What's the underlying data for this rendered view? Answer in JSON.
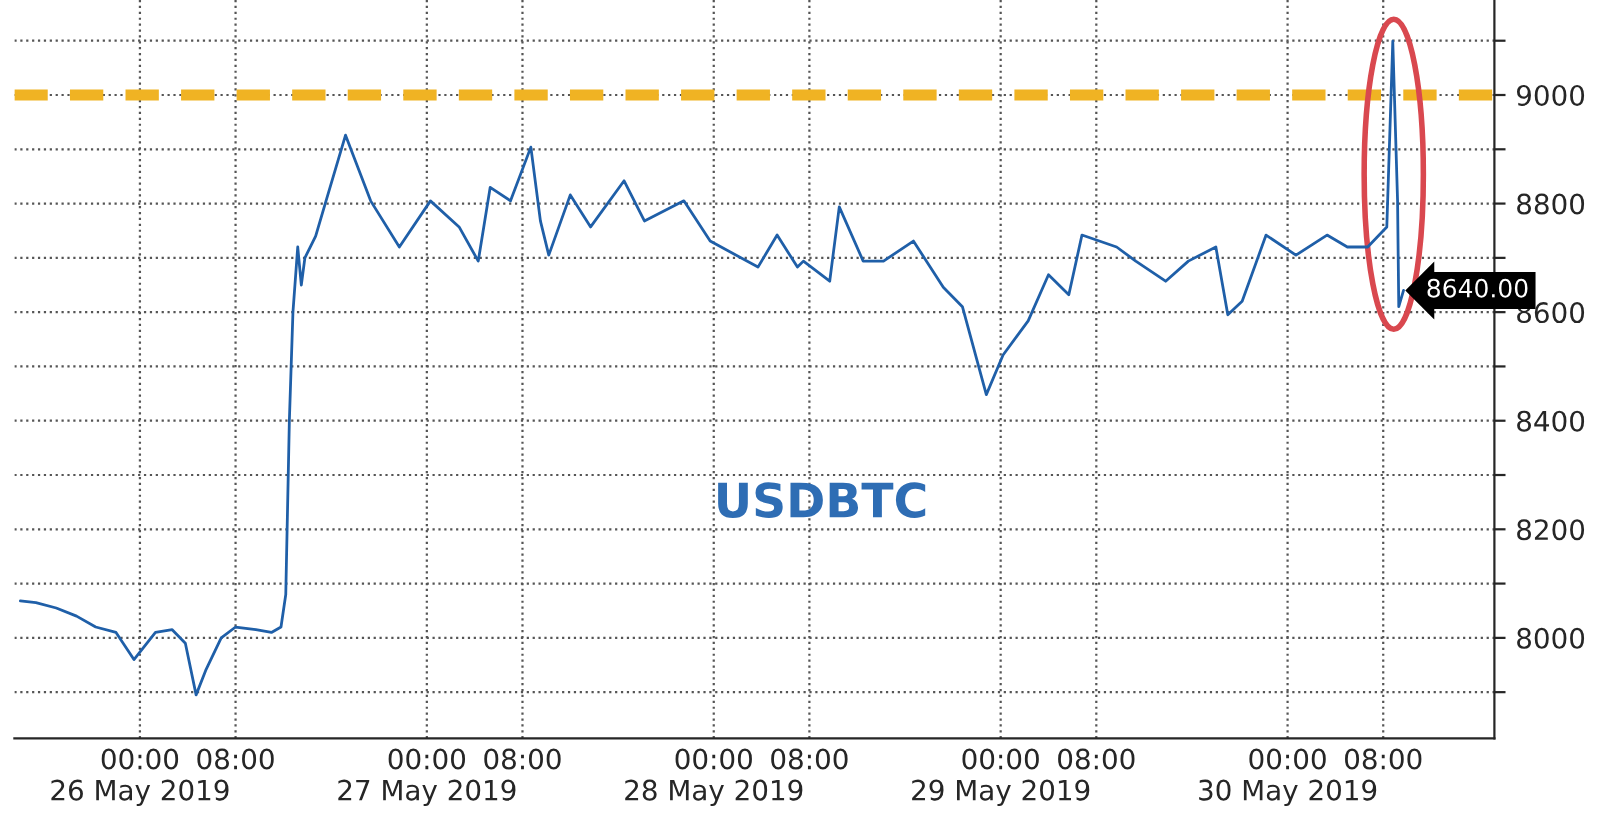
{
  "chart_data": {
    "type": "line",
    "annotations": [
      "USDBTC"
    ],
    "xlim": [
      "2019-05-25T13:30",
      "2019-05-30T17:18"
    ],
    "xticks": [
      {
        "value": "2019-05-26T00:00",
        "label": "00:00\n26 May 2019"
      },
      {
        "value": "2019-05-26T08:00",
        "label": "08:00"
      },
      {
        "value": "2019-05-27T00:00",
        "label": "00:00\n27 May 2019"
      },
      {
        "value": "2019-05-27T08:00",
        "label": "08:00"
      },
      {
        "value": "2019-05-28T00:00",
        "label": "00:00\n28 May 2019"
      },
      {
        "value": "2019-05-28T08:00",
        "label": "08:00"
      },
      {
        "value": "2019-05-29T00:00",
        "label": "00:00\n29 May 2019"
      },
      {
        "value": "2019-05-29T08:00",
        "label": "08:00"
      },
      {
        "value": "2019-05-30T00:00",
        "label": "00:00\n30 May 2019"
      },
      {
        "value": "2019-05-30T08:00",
        "label": "08:00"
      }
    ],
    "ylim": [
      7815,
      9175
    ],
    "yticks": [
      {
        "value": 7900,
        "label": null
      },
      8000,
      {
        "value": 8100,
        "label": null
      },
      8200,
      {
        "value": 8300,
        "label": null
      },
      8400,
      {
        "value": 8500,
        "label": null
      },
      8600,
      {
        "value": 8700,
        "label": null
      },
      8800,
      {
        "value": 8900,
        "label": null
      },
      9000,
      {
        "value": 9100,
        "label": null
      }
    ],
    "grid": true,
    "ref_lines": [
      {
        "axis": "y",
        "value": 9000,
        "color": "#f0b323",
        "line_style": "dashed"
      }
    ],
    "series": [
      {
        "color": "#1f5fa8",
        "x": [
          "2019-05-25T14:00",
          "2019-05-25T15:18",
          "2019-05-25T17:00",
          "2019-05-25T18:42",
          "2019-05-25T20:18",
          "2019-05-25T22:00",
          "2019-05-25T23:30",
          "2019-05-26T01:18",
          "2019-05-26T02:42",
          "2019-05-26T03:48",
          "2019-05-26T04:42",
          "2019-05-26T05:30",
          "2019-05-26T06:48",
          "2019-05-26T08:00",
          "2019-05-26T09:42",
          "2019-05-26T11:00",
          "2019-05-26T11:48",
          "2019-05-26T12:12",
          "2019-05-26T12:30",
          "2019-05-26T12:48",
          "2019-05-26T13:12",
          "2019-05-26T13:30",
          "2019-05-26T13:48",
          "2019-05-26T14:42",
          "2019-05-26T15:30",
          "2019-05-26T17:12",
          "2019-05-26T19:18",
          "2019-05-26T21:42",
          "2019-05-27T00:18",
          "2019-05-27T02:42",
          "2019-05-27T04:18",
          "2019-05-27T05:18",
          "2019-05-27T07:00",
          "2019-05-27T08:42",
          "2019-05-27T09:30",
          "2019-05-27T10:12",
          "2019-05-27T12:00",
          "2019-05-27T13:42",
          "2019-05-27T16:30",
          "2019-05-27T18:12",
          "2019-05-27T21:30",
          "2019-05-27T23:42",
          "2019-05-28T03:42",
          "2019-05-28T05:18",
          "2019-05-28T07:00",
          "2019-05-28T07:30",
          "2019-05-28T09:42",
          "2019-05-28T10:30",
          "2019-05-28T12:30",
          "2019-05-28T14:12",
          "2019-05-28T16:42",
          "2019-05-28T19:12",
          "2019-05-28T20:48",
          "2019-05-28T22:48",
          "2019-05-29T00:12",
          "2019-05-29T02:18",
          "2019-05-29T04:00",
          "2019-05-29T05:42",
          "2019-05-29T06:48",
          "2019-05-29T09:42",
          "2019-05-29T11:18",
          "2019-05-29T13:48",
          "2019-05-29T15:42",
          "2019-05-29T18:00",
          "2019-05-29T19:00",
          "2019-05-29T20:12",
          "2019-05-29T22:12",
          "2019-05-30T00:42",
          "2019-05-30T03:18",
          "2019-05-30T05:00",
          "2019-05-30T06:42",
          "2019-05-30T08:18",
          "2019-05-30T08:48",
          "2019-05-30T09:12",
          "2019-05-30T09:18",
          "2019-05-30T09:42"
        ],
        "values": [
          8068,
          8065,
          8055,
          8040,
          8020,
          8010,
          7960,
          8010,
          8015,
          7990,
          7895,
          7940,
          8000,
          8020,
          8015,
          8010,
          8020,
          8080,
          8400,
          8600,
          8720,
          8650,
          8700,
          8740,
          8800,
          8926,
          8805,
          8720,
          8805,
          8757,
          8694,
          8830,
          8805,
          8904,
          8768,
          8705,
          8816,
          8757,
          8842,
          8768,
          8805,
          8731,
          8683,
          8742,
          8683,
          8694,
          8657,
          8794,
          8694,
          8694,
          8731,
          8646,
          8610,
          8448,
          8521,
          8584,
          8669,
          8632,
          8742,
          8720,
          8694,
          8657,
          8694,
          8720,
          8595,
          8620,
          8742,
          8705,
          8742,
          8720,
          8720,
          8757,
          9099,
          8805,
          8610,
          8640
        ],
        "value_labels": [
          null,
          null,
          null,
          null,
          null,
          null,
          null,
          null,
          null,
          null,
          null,
          null,
          null,
          null,
          null,
          null,
          null,
          null,
          null,
          null,
          null,
          null,
          null,
          null,
          null,
          null,
          null,
          null,
          null,
          null,
          null,
          null,
          null,
          null,
          null,
          null,
          null,
          null,
          null,
          null,
          null,
          null,
          null,
          null,
          null,
          null,
          null,
          null,
          null,
          null,
          null,
          null,
          null,
          null,
          null,
          null,
          null,
          null,
          null,
          null,
          null,
          null,
          null,
          null,
          null,
          null,
          null,
          null,
          null,
          null,
          null,
          null,
          null,
          null,
          null,
          "8640.00"
        ]
      }
    ]
  }
}
